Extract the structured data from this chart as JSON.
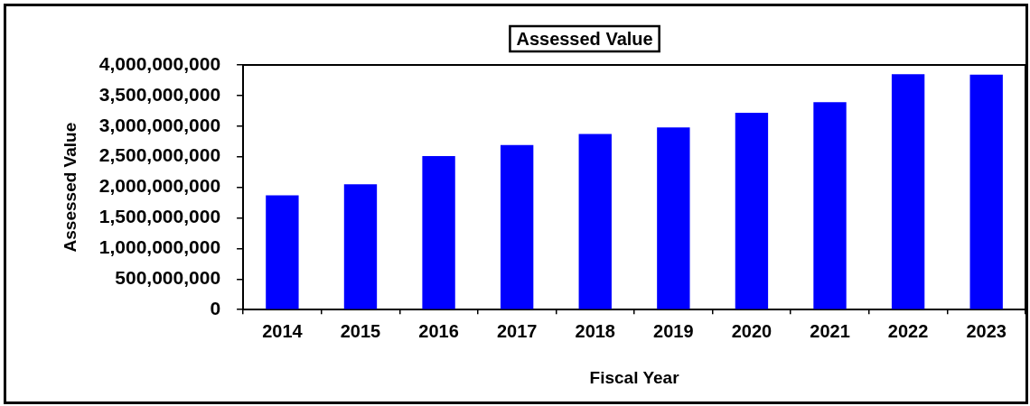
{
  "chart_data": {
    "type": "bar",
    "title": "Assessed Value",
    "xlabel": "Fiscal Year",
    "ylabel": "Assessed Value",
    "categories": [
      "2014",
      "2015",
      "2016",
      "2017",
      "2018",
      "2019",
      "2020",
      "2021",
      "2022",
      "2023"
    ],
    "values": [
      1870000000,
      2050000000,
      2510000000,
      2690000000,
      2870000000,
      2980000000,
      3220000000,
      3390000000,
      3850000000,
      3840000000
    ],
    "color": "#0000ff",
    "ylim": [
      0,
      4000000000
    ],
    "yticks": [
      {
        "value": 0,
        "label": "0"
      },
      {
        "value": 500000000,
        "label": "500,000,000"
      },
      {
        "value": 1000000000,
        "label": "1,000,000,000"
      },
      {
        "value": 1500000000,
        "label": "1,500,000,000"
      },
      {
        "value": 2000000000,
        "label": "2,000,000,000"
      },
      {
        "value": 2500000000,
        "label": "2,500,000,000"
      },
      {
        "value": 3000000000,
        "label": "3,000,000,000"
      },
      {
        "value": 3500000000,
        "label": "3,500,000,000"
      },
      {
        "value": 4000000000,
        "label": "4,000,000,000"
      }
    ],
    "legend": false
  }
}
